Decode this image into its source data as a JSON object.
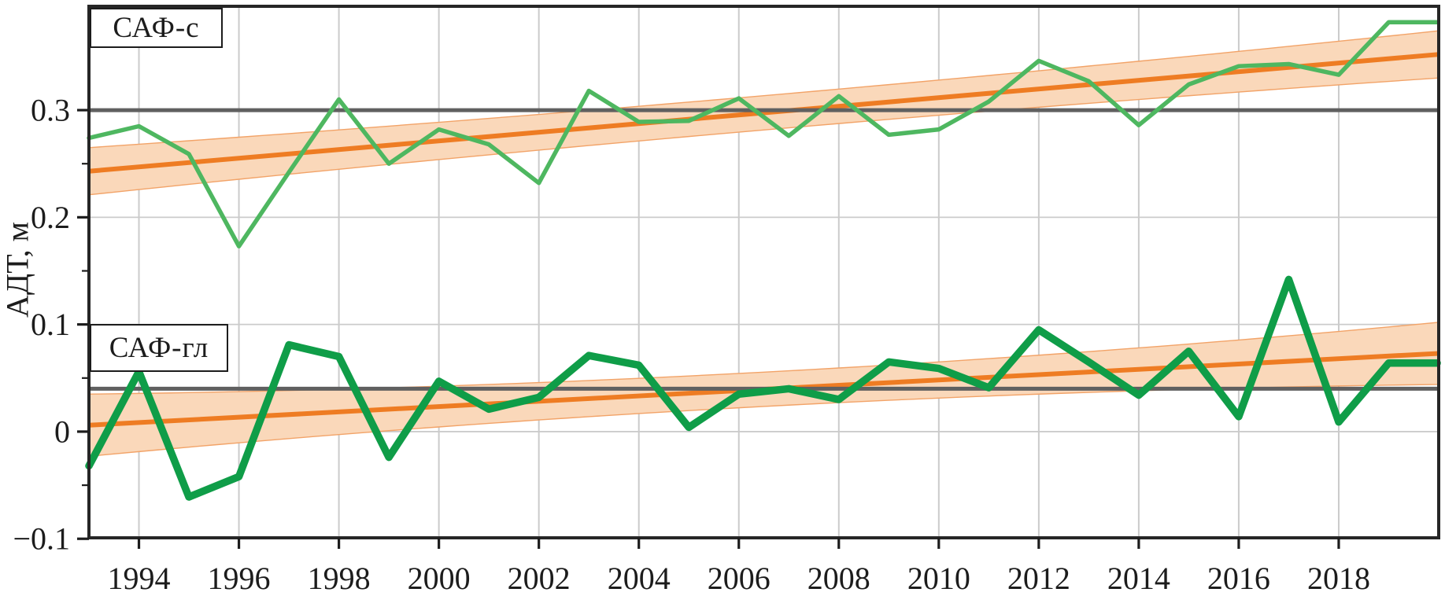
{
  "figure": {
    "ylabel": "АДТ, м",
    "panel_labels": {
      "top": "САФ-с",
      "bottom": "САФ-гл"
    }
  },
  "chart_data": {
    "type": "line",
    "title": "",
    "xlabel": "",
    "ylabel": "АДТ, м",
    "grid": true,
    "x_axis": {
      "range": [
        1993,
        2020
      ],
      "major_ticks": [
        1994,
        1996,
        1998,
        2000,
        2002,
        2004,
        2006,
        2008,
        2010,
        2012,
        2014,
        2016,
        2018
      ],
      "tick_labels": [
        "1994",
        "1996",
        "1998",
        "2000",
        "2002",
        "2004",
        "2006",
        "2008",
        "2010",
        "2012",
        "2014",
        "2016",
        "2018"
      ]
    },
    "y_axis": {
      "range": [
        -0.0991,
        0.3969
      ],
      "major_ticks": [
        0.3,
        0.2,
        0.1,
        0.0,
        -0.1
      ],
      "tick_labels": [
        "0.3",
        "0.2",
        "0.1",
        "0",
        "−0.1"
      ],
      "minor_ticks": [
        0.25,
        0.15,
        0.05,
        -0.05
      ],
      "gridline_values": [
        0.3,
        0.2,
        0.1,
        0.0
      ]
    },
    "years": [
      1993,
      1994,
      1995,
      1996,
      1997,
      1998,
      1999,
      2000,
      2001,
      2002,
      2003,
      2004,
      2005,
      2006,
      2007,
      2008,
      2009,
      2010,
      2011,
      2012,
      2013,
      2014,
      2015,
      2016,
      2017,
      2018,
      2019,
      2019.97
    ],
    "series": [
      {
        "name": "САФ-с",
        "color": "#4eb760",
        "line_width": 5.5,
        "values": [
          0.274,
          0.285,
          0.259,
          0.173,
          0.242,
          0.31,
          0.25,
          0.282,
          0.268,
          0.232,
          0.318,
          0.289,
          0.29,
          0.311,
          0.276,
          0.313,
          0.277,
          0.282,
          0.308,
          0.346,
          0.327,
          0.286,
          0.324,
          0.341,
          0.343,
          0.333,
          0.382,
          0.382
        ]
      },
      {
        "name": "САФ-гл",
        "color": "#0f9d48",
        "line_width": 9.5,
        "values": [
          -0.032,
          0.056,
          -0.061,
          -0.042,
          0.081,
          0.07,
          -0.024,
          0.047,
          0.021,
          0.032,
          0.071,
          0.062,
          0.004,
          0.035,
          0.04,
          0.03,
          0.065,
          0.059,
          0.041,
          0.095,
          0.065,
          0.034,
          0.075,
          0.014,
          0.142,
          0.009,
          0.064,
          0.064
        ]
      }
    ],
    "trends": [
      {
        "for": "САФ-с",
        "color": "#ee7c23",
        "line_width": 6,
        "band_fill": "#fad8ba",
        "band_edge": "#f2a368",
        "start": {
          "year": 1993,
          "value": 0.243
        },
        "end": {
          "year": 2020,
          "value": 0.352
        },
        "band_halfwidth_ends": 0.022,
        "band_halfwidth_mid": 0.016
      },
      {
        "for": "САФ-гл",
        "color": "#ee7c23",
        "line_width": 6,
        "band_fill": "#fad8ba",
        "band_edge": "#f2a368",
        "start": {
          "year": 1993,
          "value": 0.006
        },
        "end": {
          "year": 2020,
          "value": 0.073
        },
        "band_halfwidth_ends": 0.029,
        "band_halfwidth_mid": 0.016
      }
    ],
    "reference_lines": [
      {
        "panel": "САФ-с",
        "value": 0.3,
        "color": "#606060",
        "line_width": 5
      },
      {
        "panel": "САФ-гл",
        "value": 0.04,
        "color": "#606060",
        "line_width": 5
      }
    ],
    "legend_position": "upper-left-boxes"
  },
  "style": {
    "grid_color": "#cbcbcb",
    "frame_color": "#262626",
    "tick_color": "#1c1c1c",
    "background": "#ffffff"
  }
}
